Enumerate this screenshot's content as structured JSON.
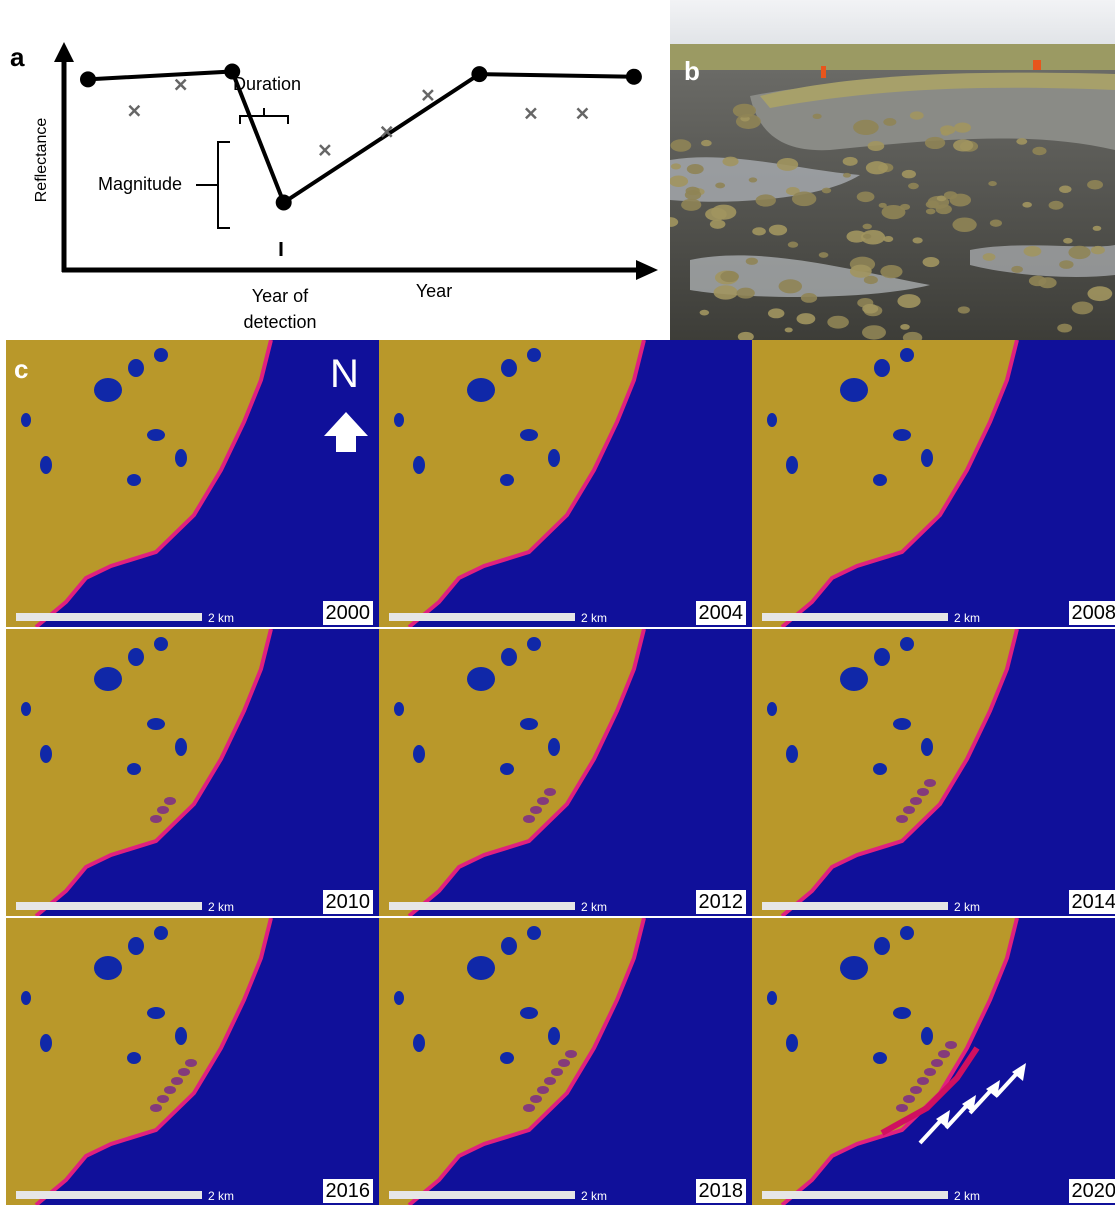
{
  "panel_a": {
    "letter": "a",
    "y_axis_label": "Reflectance",
    "x_axis_label": "Year",
    "annotations": {
      "duration": "Duration",
      "magnitude": "Magnitude",
      "year_of_detection": [
        "Year of",
        "detection"
      ]
    },
    "chart_data": {
      "type": "line",
      "title": "",
      "xlabel": "Year",
      "ylabel": "Reflectance",
      "series": [
        {
          "values": [
            [
              0,
              0.72
            ],
            [
              1.4,
              0.75
            ],
            [
              1.9,
              0.25
            ],
            [
              3.8,
              0.74
            ],
            [
              5.3,
              0.73
            ]
          ]
        },
        {
          "values": [
            [
              0.45,
              0.6
            ],
            [
              0.9,
              0.7
            ],
            [
              2.3,
              0.45
            ],
            [
              2.9,
              0.52
            ],
            [
              3.3,
              0.66
            ],
            [
              4.3,
              0.59
            ],
            [
              4.8,
              0.59
            ]
          ]
        }
      ],
      "legend": "none",
      "grid": false
    }
  },
  "panel_b": {
    "letter": "b"
  },
  "panel_c": {
    "letter": "c",
    "north": "N",
    "scale_label": "2 km",
    "tiles": [
      {
        "year": "2000"
      },
      {
        "year": "2004"
      },
      {
        "year": "2008"
      },
      {
        "year": "2010"
      },
      {
        "year": "2012"
      },
      {
        "year": "2014"
      },
      {
        "year": "2016"
      },
      {
        "year": "2018"
      },
      {
        "year": "2020"
      }
    ]
  },
  "colors": {
    "water": "#10109a",
    "land": "#b9982a",
    "shoreline": "#e0207f",
    "lake": "#1028a8"
  }
}
